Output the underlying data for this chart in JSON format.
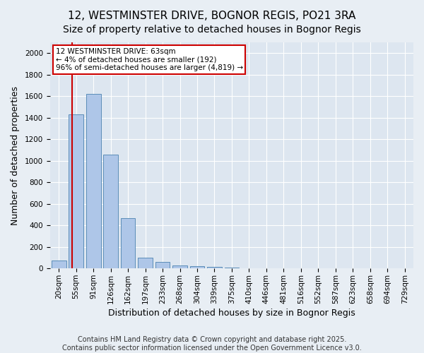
{
  "title_line1": "12, WESTMINSTER DRIVE, BOGNOR REGIS, PO21 3RA",
  "title_line2": "Size of property relative to detached houses in Bognor Regis",
  "xlabel": "Distribution of detached houses by size in Bognor Regis",
  "ylabel": "Number of detached properties",
  "bins": [
    "20sqm",
    "55sqm",
    "91sqm",
    "126sqm",
    "162sqm",
    "197sqm",
    "233sqm",
    "268sqm",
    "304sqm",
    "339sqm",
    "375sqm",
    "410sqm",
    "446sqm",
    "481sqm",
    "516sqm",
    "552sqm",
    "587sqm",
    "623sqm",
    "658sqm",
    "694sqm",
    "729sqm"
  ],
  "values": [
    72,
    1430,
    1620,
    1060,
    470,
    100,
    60,
    30,
    20,
    14,
    8,
    2,
    0,
    0,
    0,
    0,
    0,
    0,
    0,
    0,
    0
  ],
  "bar_color": "#aec6e8",
  "bar_edge_color": "#5b8db8",
  "vline_color": "#cc0000",
  "vline_pos": 0.78,
  "annotation_text": "12 WESTMINSTER DRIVE: 63sqm\n← 4% of detached houses are smaller (192)\n96% of semi-detached houses are larger (4,819) →",
  "annotation_box_edge": "#cc0000",
  "ylim": [
    0,
    2100
  ],
  "yticks": [
    0,
    200,
    400,
    600,
    800,
    1000,
    1200,
    1400,
    1600,
    1800,
    2000
  ],
  "bg_color": "#e8eef4",
  "plot_bg_color": "#dde6f0",
  "footer": "Contains HM Land Registry data © Crown copyright and database right 2025.\nContains public sector information licensed under the Open Government Licence v3.0.",
  "title_fontsize": 11,
  "subtitle_fontsize": 10,
  "ylabel_fontsize": 9,
  "xlabel_fontsize": 9,
  "tick_fontsize": 7.5,
  "footer_fontsize": 7,
  "annot_fontsize": 7.5
}
